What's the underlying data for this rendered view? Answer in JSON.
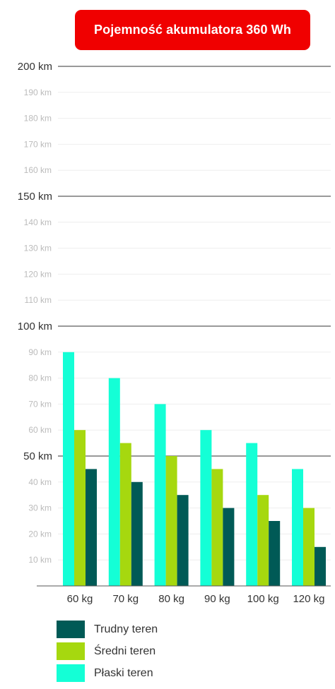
{
  "chart_data": {
    "type": "bar",
    "title": "Pojemność akumulatora 360 Wh",
    "xlabel": "",
    "ylabel": "",
    "ylim": [
      0,
      200
    ],
    "grid": true,
    "legend_position": "bottom-left",
    "categories": [
      "60 kg",
      "70 kg",
      "80 kg",
      "90 kg",
      "100 kg",
      "120 kg"
    ],
    "series": [
      {
        "name": "Płaski teren",
        "color": "#14ffd6",
        "values": [
          90,
          80,
          70,
          60,
          55,
          45
        ]
      },
      {
        "name": "Średni teren",
        "color": "#a6d80f",
        "values": [
          60,
          55,
          50,
          45,
          35,
          30
        ]
      },
      {
        "name": "Trudny teren",
        "color": "#005a56",
        "values": [
          45,
          40,
          35,
          30,
          25,
          15
        ]
      }
    ],
    "y_ticks": [
      {
        "value": 10,
        "label": "10 km",
        "major": false
      },
      {
        "value": 20,
        "label": "20 km",
        "major": false
      },
      {
        "value": 30,
        "label": "30 km",
        "major": false
      },
      {
        "value": 40,
        "label": "40 km",
        "major": false
      },
      {
        "value": 50,
        "label": "50 km",
        "major": true
      },
      {
        "value": 60,
        "label": "60 km",
        "major": false
      },
      {
        "value": 70,
        "label": "70 km",
        "major": false
      },
      {
        "value": 80,
        "label": "80 km",
        "major": false
      },
      {
        "value": 90,
        "label": "90 km",
        "major": false
      },
      {
        "value": 100,
        "label": "100 km",
        "major": true
      },
      {
        "value": 110,
        "label": "110 km",
        "major": false
      },
      {
        "value": 120,
        "label": "120 km",
        "major": false
      },
      {
        "value": 130,
        "label": "130 km",
        "major": false
      },
      {
        "value": 140,
        "label": "140 km",
        "major": false
      },
      {
        "value": 150,
        "label": "150 km",
        "major": true
      },
      {
        "value": 160,
        "label": "160 km",
        "major": false
      },
      {
        "value": 170,
        "label": "170 km",
        "major": false
      },
      {
        "value": 180,
        "label": "180 km",
        "major": false
      },
      {
        "value": 190,
        "label": "190 km",
        "major": false
      },
      {
        "value": 200,
        "label": "200 km",
        "major": true
      }
    ],
    "legend": [
      {
        "label": "Trudny teren",
        "color": "#005a56"
      },
      {
        "label": "Średni teren",
        "color": "#a6d80f"
      },
      {
        "label": "Płaski teren",
        "color": "#14ffd6"
      }
    ]
  },
  "colors": {
    "title_background": "#f00000",
    "title_text": "#ffffff",
    "major_grid": "#333333",
    "minor_grid": "#eeeeee",
    "minor_tick_text": "#bbbbbb",
    "major_tick_text": "#333333"
  }
}
